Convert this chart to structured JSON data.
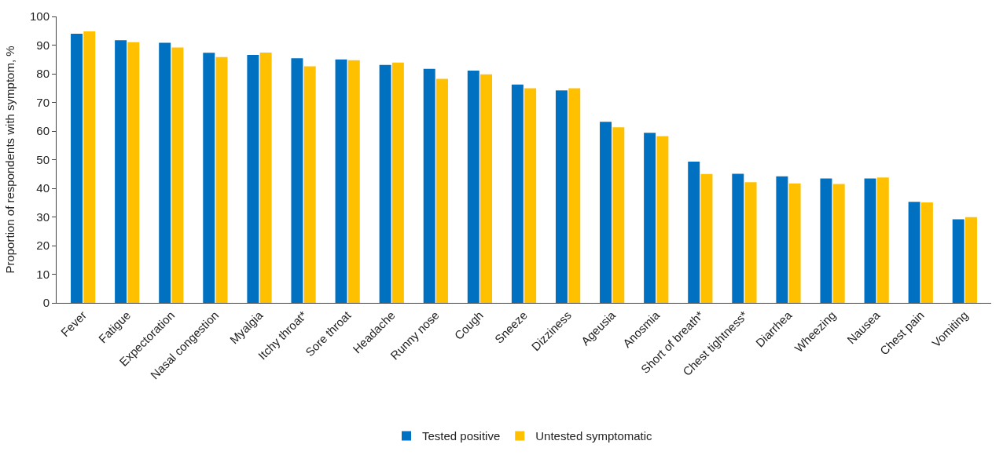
{
  "chart_data": {
    "type": "bar",
    "ylabel": "Proportion of respondents with symptom, %",
    "categories": [
      "Fever",
      "Fatigue",
      "Expectoration",
      "Nasal congestion",
      "Myalgia",
      "Itchy throat*",
      "Sore throat",
      "Headache",
      "Runny nose",
      "Cough",
      "Sneeze",
      "Dizziness",
      "Ageusia",
      "Anosmia",
      "Short of breath*",
      "Chest tightness*",
      "Diarrhea",
      "Wheezing",
      "Nausea",
      "Chest pain",
      "Vomiting"
    ],
    "series": [
      {
        "name": "Tested positive",
        "color": "#0070c0",
        "values": [
          94.0,
          91.7,
          90.8,
          87.3,
          86.6,
          85.4,
          85.0,
          83.1,
          81.7,
          81.1,
          76.2,
          74.2,
          63.2,
          59.4,
          49.3,
          45.1,
          44.2,
          43.4,
          43.4,
          35.3,
          29.2
        ]
      },
      {
        "name": "Untested symptomatic",
        "color": "#ffc000",
        "values": [
          94.8,
          91.0,
          89.2,
          85.8,
          87.4,
          82.6,
          84.7,
          83.9,
          78.2,
          79.8,
          74.9,
          74.9,
          61.3,
          58.2,
          45.0,
          42.1,
          41.7,
          41.5,
          43.8,
          35.1,
          29.9
        ]
      }
    ],
    "ylim": [
      0,
      100
    ],
    "yticks": [
      0,
      10,
      20,
      30,
      40,
      50,
      60,
      70,
      80,
      90,
      100
    ],
    "grid": false,
    "legend": "bottom"
  }
}
